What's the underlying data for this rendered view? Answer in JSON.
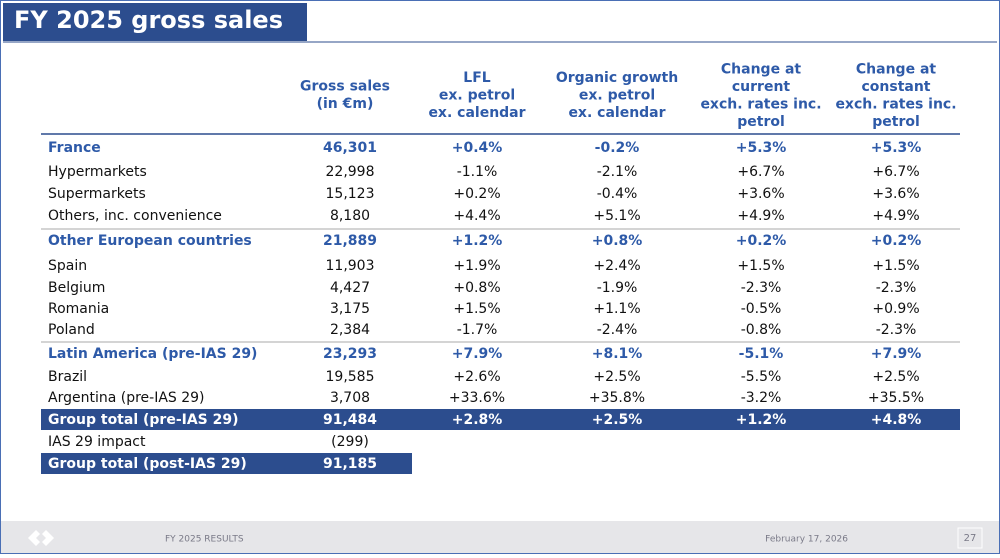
{
  "header": {
    "title": "FY 2025 gross sales"
  },
  "table": {
    "columns": [
      [
        "Gross sales",
        "(in €m)"
      ],
      [
        "LFL",
        "ex. petrol",
        "ex. calendar"
      ],
      [
        "Organic growth",
        "ex. petrol",
        "ex. calendar"
      ],
      [
        "Change at",
        "current",
        "exch. rates inc.",
        "petrol"
      ],
      [
        "Change at",
        "constant",
        "exch. rates inc.",
        "petrol"
      ]
    ],
    "rows": [
      [
        "France",
        "46,301",
        "+0.4%",
        "-0.2%",
        "+5.3%",
        "+5.3%"
      ],
      [
        "Hypermarkets",
        "22,998",
        "-1.1%",
        "-2.1%",
        "+6.7%",
        "+6.7%"
      ],
      [
        "Supermarkets",
        "15,123",
        "+0.2%",
        "-0.4%",
        "+3.6%",
        "+3.6%"
      ],
      [
        "Others, inc. convenience",
        "8,180",
        "+4.4%",
        "+5.1%",
        "+4.9%",
        "+4.9%"
      ],
      [
        "Other European countries",
        "21,889",
        "+1.2%",
        "+0.8%",
        "+0.2%",
        "+0.2%"
      ],
      [
        "Spain",
        "11,903",
        "+1.9%",
        "+2.4%",
        "+1.5%",
        "+1.5%"
      ],
      [
        "Belgium",
        "4,427",
        "+0.8%",
        "-1.9%",
        "-2.3%",
        "-2.3%"
      ],
      [
        "Romania",
        "3,175",
        "+1.5%",
        "+1.1%",
        "-0.5%",
        "+0.9%"
      ],
      [
        "Poland",
        "2,384",
        "-1.7%",
        "-2.4%",
        "-0.8%",
        "-2.3%"
      ],
      [
        "Latin America (pre-IAS 29)",
        "23,293",
        "+7.9%",
        "+8.1%",
        "-5.1%",
        "+7.9%"
      ],
      [
        "Brazil",
        "19,585",
        "+2.6%",
        "+2.5%",
        "-5.5%",
        "+2.5%"
      ],
      [
        "Argentina (pre-IAS 29)",
        "3,708",
        "+33.6%",
        "+35.8%",
        "-3.2%",
        "+35.5%"
      ],
      [
        "Group total (pre-IAS 29)",
        "91,484",
        "+2.8%",
        "+2.5%",
        "+1.2%",
        "+4.8%"
      ],
      [
        "IAS 29 impact",
        "(299)"
      ],
      [
        "Group total (post-IAS 29)",
        "91,185"
      ]
    ]
  },
  "footer": {
    "left": "FY 2025 RESULTS",
    "date": "February 17, 2026",
    "page": "27"
  }
}
